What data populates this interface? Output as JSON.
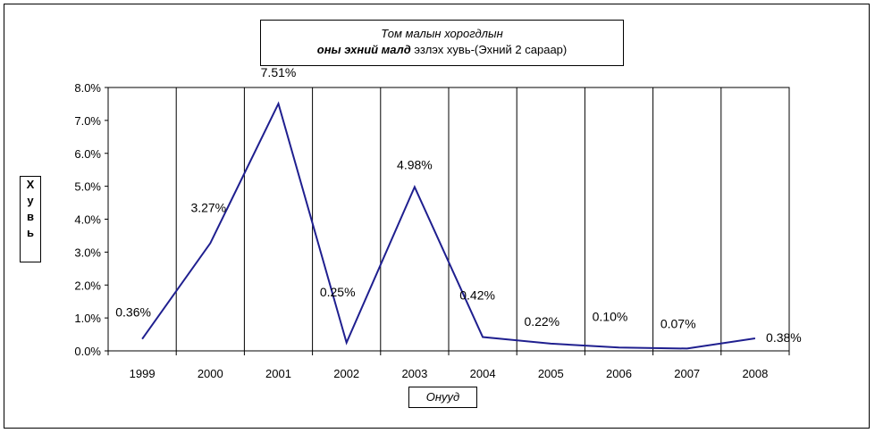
{
  "chart_data": {
    "type": "line",
    "title_line1": "Том малын хорогдлын",
    "title_line2_bold": "оны эхний малд",
    "title_line2_rest": " эзлэх хувь-(Эхний 2 сараар)",
    "ylabel_chars": [
      "Х",
      "у",
      "в",
      "ь"
    ],
    "xlabel": "Онууд",
    "categories": [
      "1999",
      "2000",
      "2001",
      "2002",
      "2003",
      "2004",
      "2005",
      "2006",
      "2007",
      "2008"
    ],
    "values": [
      0.36,
      3.27,
      7.51,
      0.25,
      4.98,
      0.42,
      0.22,
      0.1,
      0.07,
      0.38
    ],
    "data_labels": [
      "0.36%",
      "3.27%",
      "7.51%",
      "0.25%",
      "4.98%",
      "0.42%",
      "0.22%",
      "0.10%",
      "0.07%",
      "0.38%"
    ],
    "yticks": [
      "0.0%",
      "1.0%",
      "2.0%",
      "3.0%",
      "4.0%",
      "5.0%",
      "6.0%",
      "7.0%",
      "8.0%"
    ],
    "ylim": [
      0,
      8
    ],
    "line_color": "#1f1f8f",
    "grid": "vertical"
  }
}
